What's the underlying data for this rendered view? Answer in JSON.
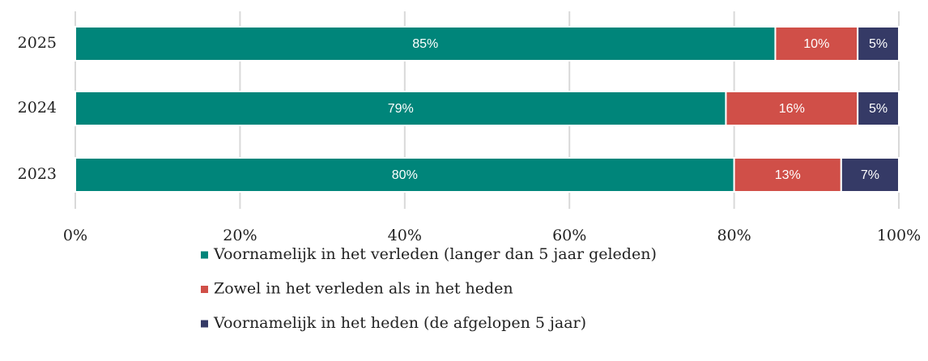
{
  "chart_data": {
    "type": "bar",
    "orientation": "horizontal",
    "stacked": true,
    "categories": [
      "2025",
      "2024",
      "2023"
    ],
    "series": [
      {
        "name": "Voornamelijk in het verleden (langer dan 5 jaar geleden)",
        "color": "#00857a",
        "values": [
          85,
          79,
          80
        ],
        "value_labels": [
          "85%",
          "79%",
          "80%"
        ]
      },
      {
        "name": "Zowel in het verleden als in het heden",
        "color": "#d04f48",
        "values": [
          10,
          16,
          13
        ],
        "value_labels": [
          "10%",
          "16%",
          "13%"
        ]
      },
      {
        "name": "Voornamelijk in het heden (de afgelopen 5 jaar)",
        "color": "#353a66",
        "values": [
          5,
          5,
          7
        ],
        "value_labels": [
          "5%",
          "5%",
          "7%"
        ]
      }
    ],
    "xlim": [
      0,
      100
    ],
    "xticks": [
      {
        "value": 0,
        "label": "0%"
      },
      {
        "value": 20,
        "label": "20%"
      },
      {
        "value": 40,
        "label": "40%"
      },
      {
        "value": 60,
        "label": "60%"
      },
      {
        "value": 80,
        "label": "80%"
      },
      {
        "value": 100,
        "label": "100%"
      }
    ],
    "grid": true,
    "legend": "bottom"
  }
}
